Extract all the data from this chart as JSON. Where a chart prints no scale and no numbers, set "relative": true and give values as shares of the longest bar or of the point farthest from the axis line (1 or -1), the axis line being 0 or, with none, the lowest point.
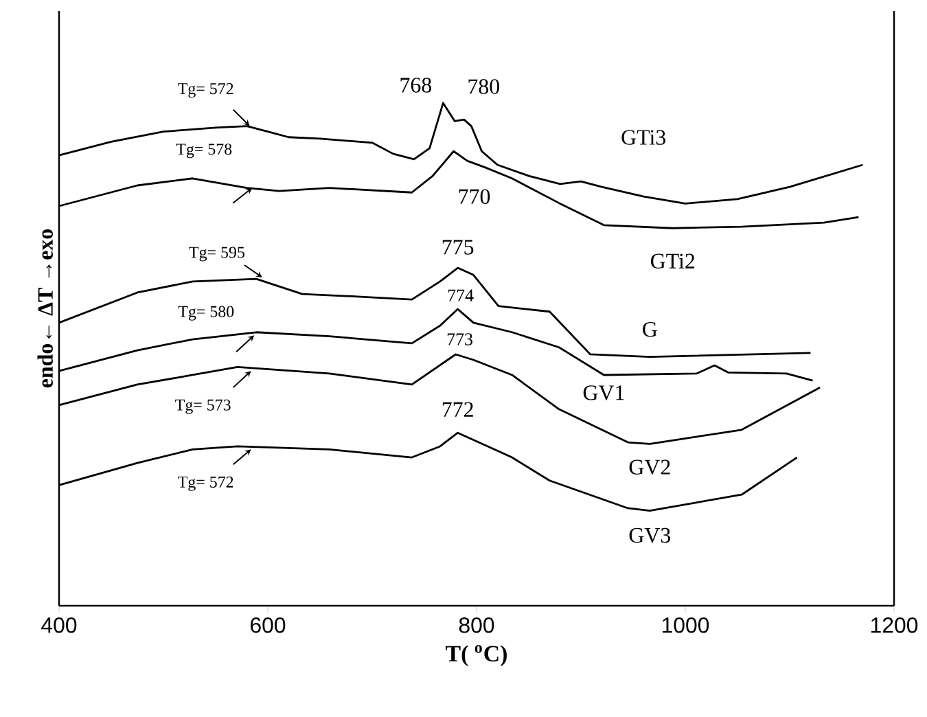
{
  "chart_data": {
    "type": "line",
    "relative": true,
    "xlabel": "T( $^{o}$C)",
    "ylabel": "endo←   ΔT   →exo",
    "xlim": [
      400,
      1200
    ],
    "xticks": [
      400,
      600,
      800,
      1000,
      1200
    ],
    "series": [
      {
        "name": "GTi3",
        "color": "#000000",
        "x": [
          400,
          450,
          500,
          550,
          580,
          600,
          620,
          650,
          700,
          720,
          740,
          755,
          768,
          779,
          788,
          795,
          805,
          820,
          850,
          880,
          900,
          920,
          960,
          1000,
          1050,
          1100,
          1170
        ],
        "values": [
          0.896,
          0.923,
          0.943,
          0.951,
          0.954,
          0.943,
          0.932,
          0.929,
          0.921,
          0.899,
          0.888,
          0.91,
          1.0,
          0.964,
          0.967,
          0.954,
          0.904,
          0.877,
          0.855,
          0.839,
          0.844,
          0.833,
          0.814,
          0.8,
          0.809,
          0.833,
          0.877
        ]
      },
      {
        "name": "GTi2",
        "color": "#000000",
        "x": [
          400,
          475,
          528,
          580,
          611,
          659,
          738,
          758,
          778,
          791,
          808,
          834,
          879,
          922,
          988,
          1054,
          1133,
          1166
        ],
        "values": [
          0.795,
          0.836,
          0.85,
          0.831,
          0.825,
          0.831,
          0.822,
          0.855,
          0.904,
          0.885,
          0.872,
          0.85,
          0.801,
          0.757,
          0.751,
          0.754,
          0.762,
          0.773
        ]
      },
      {
        "name": "G",
        "color": "#000000",
        "x": [
          400,
          475,
          528,
          589,
          633,
          686,
          738,
          765,
          782,
          797,
          821,
          870,
          909,
          966,
          1120
        ],
        "values": [
          0.563,
          0.623,
          0.645,
          0.65,
          0.62,
          0.615,
          0.609,
          0.645,
          0.672,
          0.658,
          0.596,
          0.585,
          0.5,
          0.495,
          0.503
        ]
      },
      {
        "name": "GV1",
        "color": "#000000",
        "x": [
          400,
          475,
          528,
          589,
          659,
          738,
          765,
          782,
          797,
          834,
          879,
          922,
          1011,
          1028,
          1041,
          1097,
          1122
        ],
        "values": [
          0.467,
          0.508,
          0.53,
          0.544,
          0.536,
          0.522,
          0.557,
          0.59,
          0.563,
          0.544,
          0.514,
          0.459,
          0.462,
          0.478,
          0.464,
          0.462,
          0.448
        ]
      },
      {
        "name": "GV2",
        "color": "#000000",
        "x": [
          400,
          475,
          528,
          571,
          659,
          738,
          780,
          797,
          834,
          879,
          945,
          966,
          1054,
          1129
        ],
        "values": [
          0.399,
          0.44,
          0.459,
          0.475,
          0.462,
          0.44,
          0.5,
          0.489,
          0.459,
          0.391,
          0.325,
          0.322,
          0.35,
          0.434
        ]
      },
      {
        "name": "GV3",
        "color": "#000000",
        "x": [
          400,
          475,
          528,
          571,
          659,
          738,
          765,
          782,
          817,
          834,
          870,
          945,
          966,
          1054,
          1107
        ],
        "values": [
          0.24,
          0.284,
          0.311,
          0.317,
          0.311,
          0.295,
          0.317,
          0.344,
          0.311,
          0.295,
          0.249,
          0.194,
          0.189,
          0.221,
          0.295
        ]
      }
    ],
    "annotations": [
      {
        "text": "768",
        "x": 768,
        "y": 1.0
      },
      {
        "text": "780",
        "x": 791,
        "y": 0.967
      },
      {
        "text": "770",
        "x": 778,
        "y": 0.904
      },
      {
        "text": "775",
        "x": 782,
        "y": 0.672
      },
      {
        "text": "774",
        "x": 782,
        "y": 0.59
      },
      {
        "text": "773",
        "x": 780,
        "y": 0.5
      },
      {
        "text": "772",
        "x": 782,
        "y": 0.344
      },
      {
        "text": "Tg= 572",
        "x": 584,
        "y": 0.954
      },
      {
        "text": "Tg= 578",
        "x": 585,
        "y": 0.831
      },
      {
        "text": "Tg= 595",
        "x": 596,
        "y": 0.653
      },
      {
        "text": "Tg= 580",
        "x": 587,
        "y": 0.538
      },
      {
        "text": "Tg= 573",
        "x": 584,
        "y": 0.467
      },
      {
        "text": "Tg= 572",
        "x": 584,
        "y": 0.311
      }
    ]
  }
}
